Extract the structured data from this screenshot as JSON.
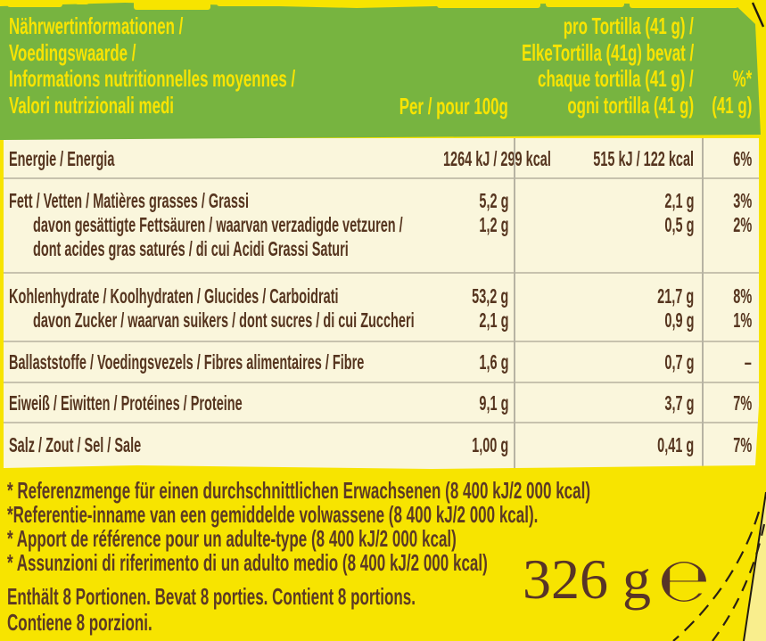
{
  "colors": {
    "package_yellow": "#f7e400",
    "banner_green": "#77b440",
    "panel_cream": "#faf6dc",
    "text_brown": "#56351f",
    "text_yellow": "#f8e402",
    "separator_gray": "#c7c2ae",
    "divider_gray": "#b7b3a3",
    "dash_dark": "#2a2014",
    "corner_pale_yellow": "#f9ee8d"
  },
  "header": {
    "title_lines": [
      "Nährwertinformationen /",
      "Voedingswaarde /",
      "Informations nutritionnelles moyennes /",
      "Valori nutrizionali medi"
    ],
    "per_100g_label": "Per / pour 100g",
    "per_tortilla_lines": [
      "pro Tortilla (41 g) /",
      "ElkeTortilla (41g) bevat /",
      "chaque tortilla (41 g) /",
      "ogni tortilla (41 g)"
    ],
    "percent_lines": [
      "%*",
      "(41 g)"
    ]
  },
  "table": {
    "rows": [
      {
        "label_lines": [
          {
            "text": "Energie / Energia",
            "sub": false
          }
        ],
        "per_100g": [
          "1264 kJ / 299 kcal"
        ],
        "per_tortilla": [
          "515 kJ / 122 kcal"
        ],
        "percent": [
          "6%"
        ]
      },
      {
        "label_lines": [
          {
            "text": "Fett / Vetten / Matières grasses / Grassi",
            "sub": false
          },
          {
            "text": "davon gesättigte Fettsäuren / waarvan verzadigde vetzuren /",
            "sub": true
          },
          {
            "text": "dont acides gras saturés / di cui Acidi Grassi Saturi",
            "sub": true
          }
        ],
        "per_100g": [
          "5,2 g",
          "1,2 g"
        ],
        "per_tortilla": [
          "2,1 g",
          "0,5 g"
        ],
        "percent": [
          "3%",
          "2%"
        ]
      },
      {
        "label_lines": [
          {
            "text": "Kohlenhydrate / Koolhydraten / Glucides / Carboidrati",
            "sub": false
          },
          {
            "text": "davon Zucker / waarvan suikers / dont sucres / di cui Zuccheri",
            "sub": true
          }
        ],
        "per_100g": [
          "53,2 g",
          "2,1 g"
        ],
        "per_tortilla": [
          "21,7 g",
          "0,9 g"
        ],
        "percent": [
          "8%",
          "1%"
        ]
      },
      {
        "label_lines": [
          {
            "text": "Ballaststoffe / Voedingsvezels / Fibres alimentaires / Fibre",
            "sub": false
          }
        ],
        "per_100g": [
          "1,6 g"
        ],
        "per_tortilla": [
          "0,7 g"
        ],
        "percent": [
          "–"
        ]
      },
      {
        "label_lines": [
          {
            "text": "Eiweiß / Eiwitten / Protéines / Proteine",
            "sub": false
          }
        ],
        "per_100g": [
          "9,1 g"
        ],
        "per_tortilla": [
          "3,7 g"
        ],
        "percent": [
          "7%"
        ]
      },
      {
        "label_lines": [
          {
            "text": "Salz / Zout / Sel / Sale",
            "sub": false
          }
        ],
        "per_100g": [
          "1,00 g"
        ],
        "per_tortilla": [
          "0,41 g"
        ],
        "percent": [
          "7%"
        ]
      }
    ]
  },
  "footnotes": [
    "* Referenzmenge für einen durchschnittlichen Erwachsenen (8 400 kJ/2 000 kcal)",
    "*Referentie-inname van een gemiddelde volwassene (8 400 kJ/2 000 kcal).",
    "* Apport de référence pour un adulte-type (8 400 kJ/2 000 kcal)",
    "* Assunzioni di riferimento di un adulto medio (8 400 kJ/2 000 kcal)"
  ],
  "servings_lines": [
    "Enthält 8 Portionen. Bevat 8 porties. Contient 8 portions.",
    "Contiene 8 porzioni."
  ],
  "net_weight": {
    "value": "326 g",
    "e_mark": "℮"
  }
}
